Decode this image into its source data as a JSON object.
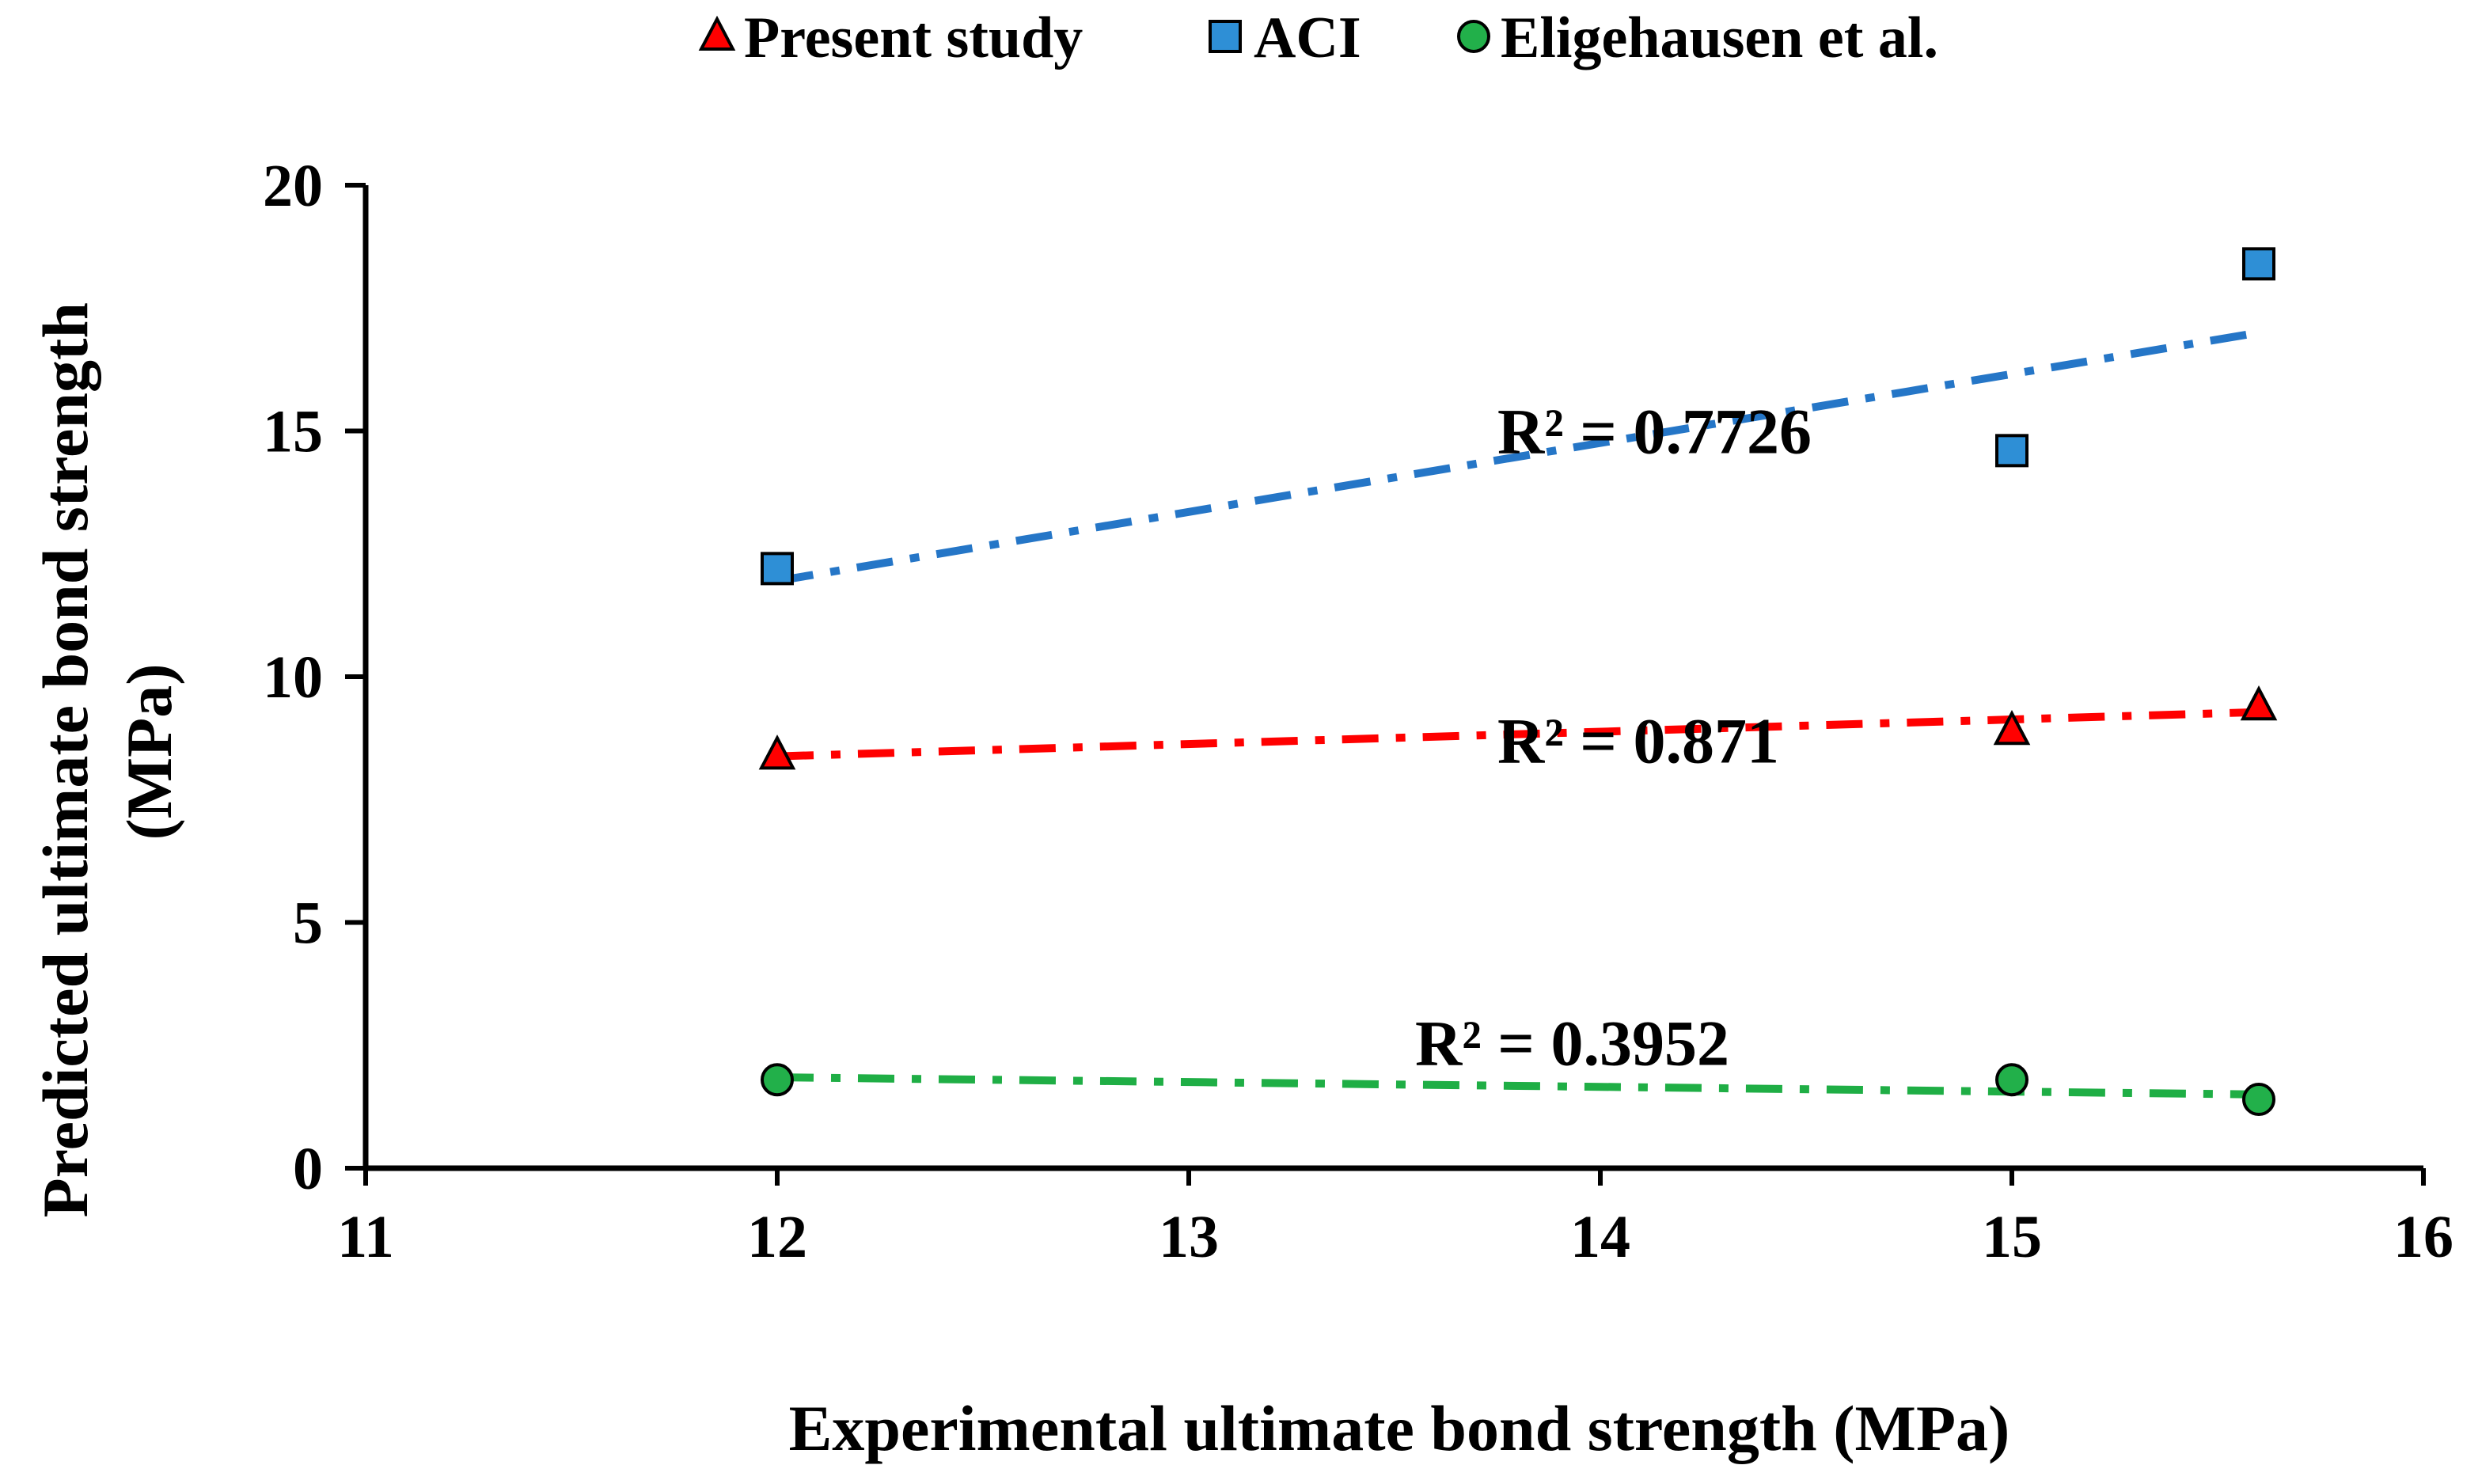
{
  "chart_data": {
    "type": "scatter",
    "title": "",
    "xlabel": "Experimental ultimate bond strength (MPa)",
    "ylabel_lines": [
      "Predicted ultimate bond strength",
      "(MPa)"
    ],
    "xlim": [
      11,
      16
    ],
    "ylim": [
      0,
      20
    ],
    "x_ticks": [
      11,
      12,
      13,
      14,
      15,
      16
    ],
    "y_ticks": [
      0,
      5,
      10,
      15,
      20
    ],
    "grid": false,
    "legend_position": "top",
    "series": [
      {
        "name": "Present study",
        "marker": "triangle",
        "color": "#ff0000",
        "trend_color": "#ff0000",
        "x": [
          12,
          15,
          15.6
        ],
        "y": [
          8.4,
          8.9,
          9.4
        ],
        "trendline": {
          "type": "linear",
          "start": [
            12,
            8.38
          ],
          "end": [
            15.6,
            9.28
          ],
          "r2_label": "R² = 0.871"
        }
      },
      {
        "name": "ACI",
        "marker": "square",
        "color": "#2e8fd6",
        "trend_color": "#2576c7",
        "x": [
          12,
          15,
          15.6
        ],
        "y": [
          12.2,
          14.6,
          18.4
        ],
        "trendline": {
          "type": "linear",
          "start": [
            12,
            11.95
          ],
          "end": [
            15.6,
            17.0
          ],
          "r2_label": "R² = 0.7726"
        }
      },
      {
        "name": "Eligehausen et al.",
        "marker": "circle",
        "color": "#22b04a",
        "trend_color": "#1fae45",
        "x": [
          12,
          15,
          15.6
        ],
        "y": [
          1.8,
          1.8,
          1.4
        ],
        "trendline": {
          "type": "linear",
          "start": [
            12,
            1.85
          ],
          "end": [
            15.6,
            1.5
          ],
          "r2_label": "R² = 0.3952"
        }
      }
    ]
  }
}
